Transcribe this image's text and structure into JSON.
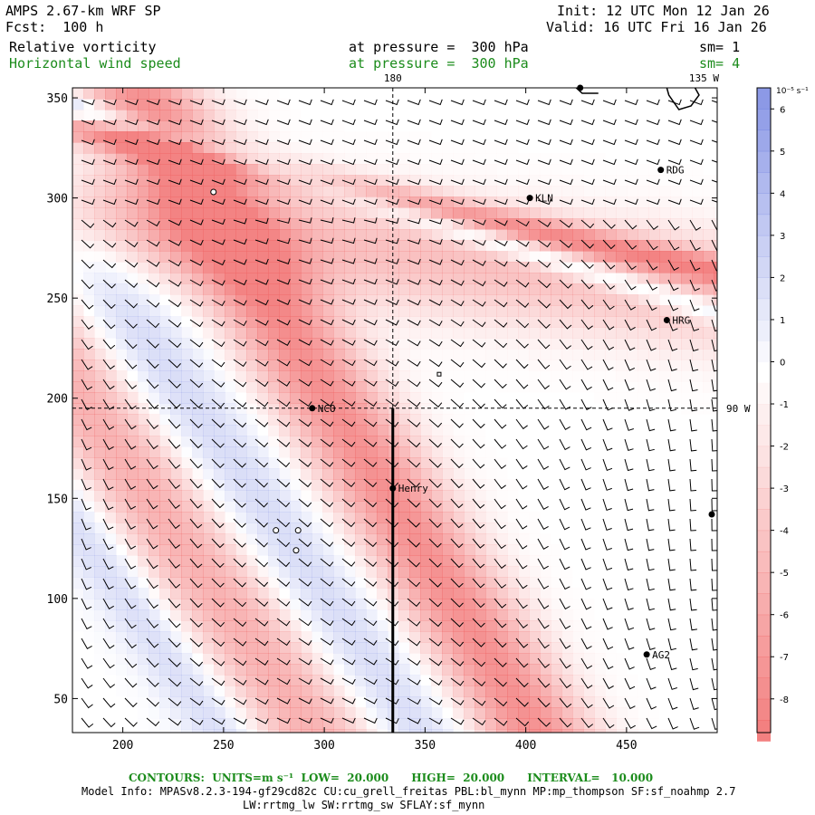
{
  "header": {
    "model": "AMPS 2.67-km WRF SP",
    "forecast": "Fcst:  100 h",
    "init": "Init: 12 UTC Mon 12 Jan 26",
    "valid": "Valid: 16 UTC Fri 16 Jan 26",
    "field1": "Relative vorticity",
    "field1_level": "at pressure =  300 hPa",
    "field1_sm": "sm= 1",
    "field2": "Horizontal wind speed",
    "field2_level": "at pressure =  300 hPa",
    "field2_sm": "sm= 4"
  },
  "colors": {
    "text_green": "#1c8c1c",
    "positive": "#6f7fe0",
    "negative": "#f07070",
    "zero": "#ffffff"
  },
  "map": {
    "x_ticks": [
      "200",
      "250",
      "300",
      "350",
      "400",
      "450"
    ],
    "x_tick_values": [
      200,
      250,
      300,
      350,
      400,
      450
    ],
    "y_ticks": [
      "50",
      "100",
      "150",
      "200",
      "250",
      "300",
      "350"
    ],
    "y_tick_values": [
      50,
      100,
      150,
      200,
      250,
      300,
      350
    ],
    "x_range": [
      175,
      495
    ],
    "y_range": [
      33,
      355
    ],
    "meridian_180": "180",
    "meridian_135w": "135 W",
    "parallel_90w": "90 W",
    "stations": [
      {
        "name": "RDG",
        "x": 467,
        "y": 314
      },
      {
        "name": "KLN",
        "x": 402,
        "y": 300
      },
      {
        "name": "HRG",
        "x": 470,
        "y": 239
      },
      {
        "name": "NCO",
        "x": 294,
        "y": 195
      },
      {
        "name": "Henry",
        "x": 334,
        "y": 155
      },
      {
        "name": "AG2",
        "x": 460,
        "y": 72
      }
    ]
  },
  "colorbar": {
    "units": "10⁻⁵ s⁻¹",
    "labels": [
      "6",
      "5",
      "4",
      "3",
      "2",
      "1",
      "0",
      "-1",
      "-2",
      "-3",
      "-4",
      "-5",
      "-6",
      "-7",
      "-8"
    ],
    "values": [
      6,
      5,
      4,
      3,
      2,
      1,
      0,
      -1,
      -2,
      -3,
      -4,
      -5,
      -6,
      -7,
      -8
    ]
  },
  "footer": {
    "contours": "CONTOURS:  UNITS=m s⁻¹  LOW=  20.000      HIGH=  20.000      INTERVAL=   10.000",
    "model_info": "Model Info: MPASv8.2.3-194-gf29cd82c CU:cu_grell_freitas PBL:bl_mynn MP:mp_thompson SF:sf_noahmp 2.7",
    "model_info2": "LW:rrtmg_lw SW:rrtmg_sw SFLAY:sf_mynn"
  }
}
